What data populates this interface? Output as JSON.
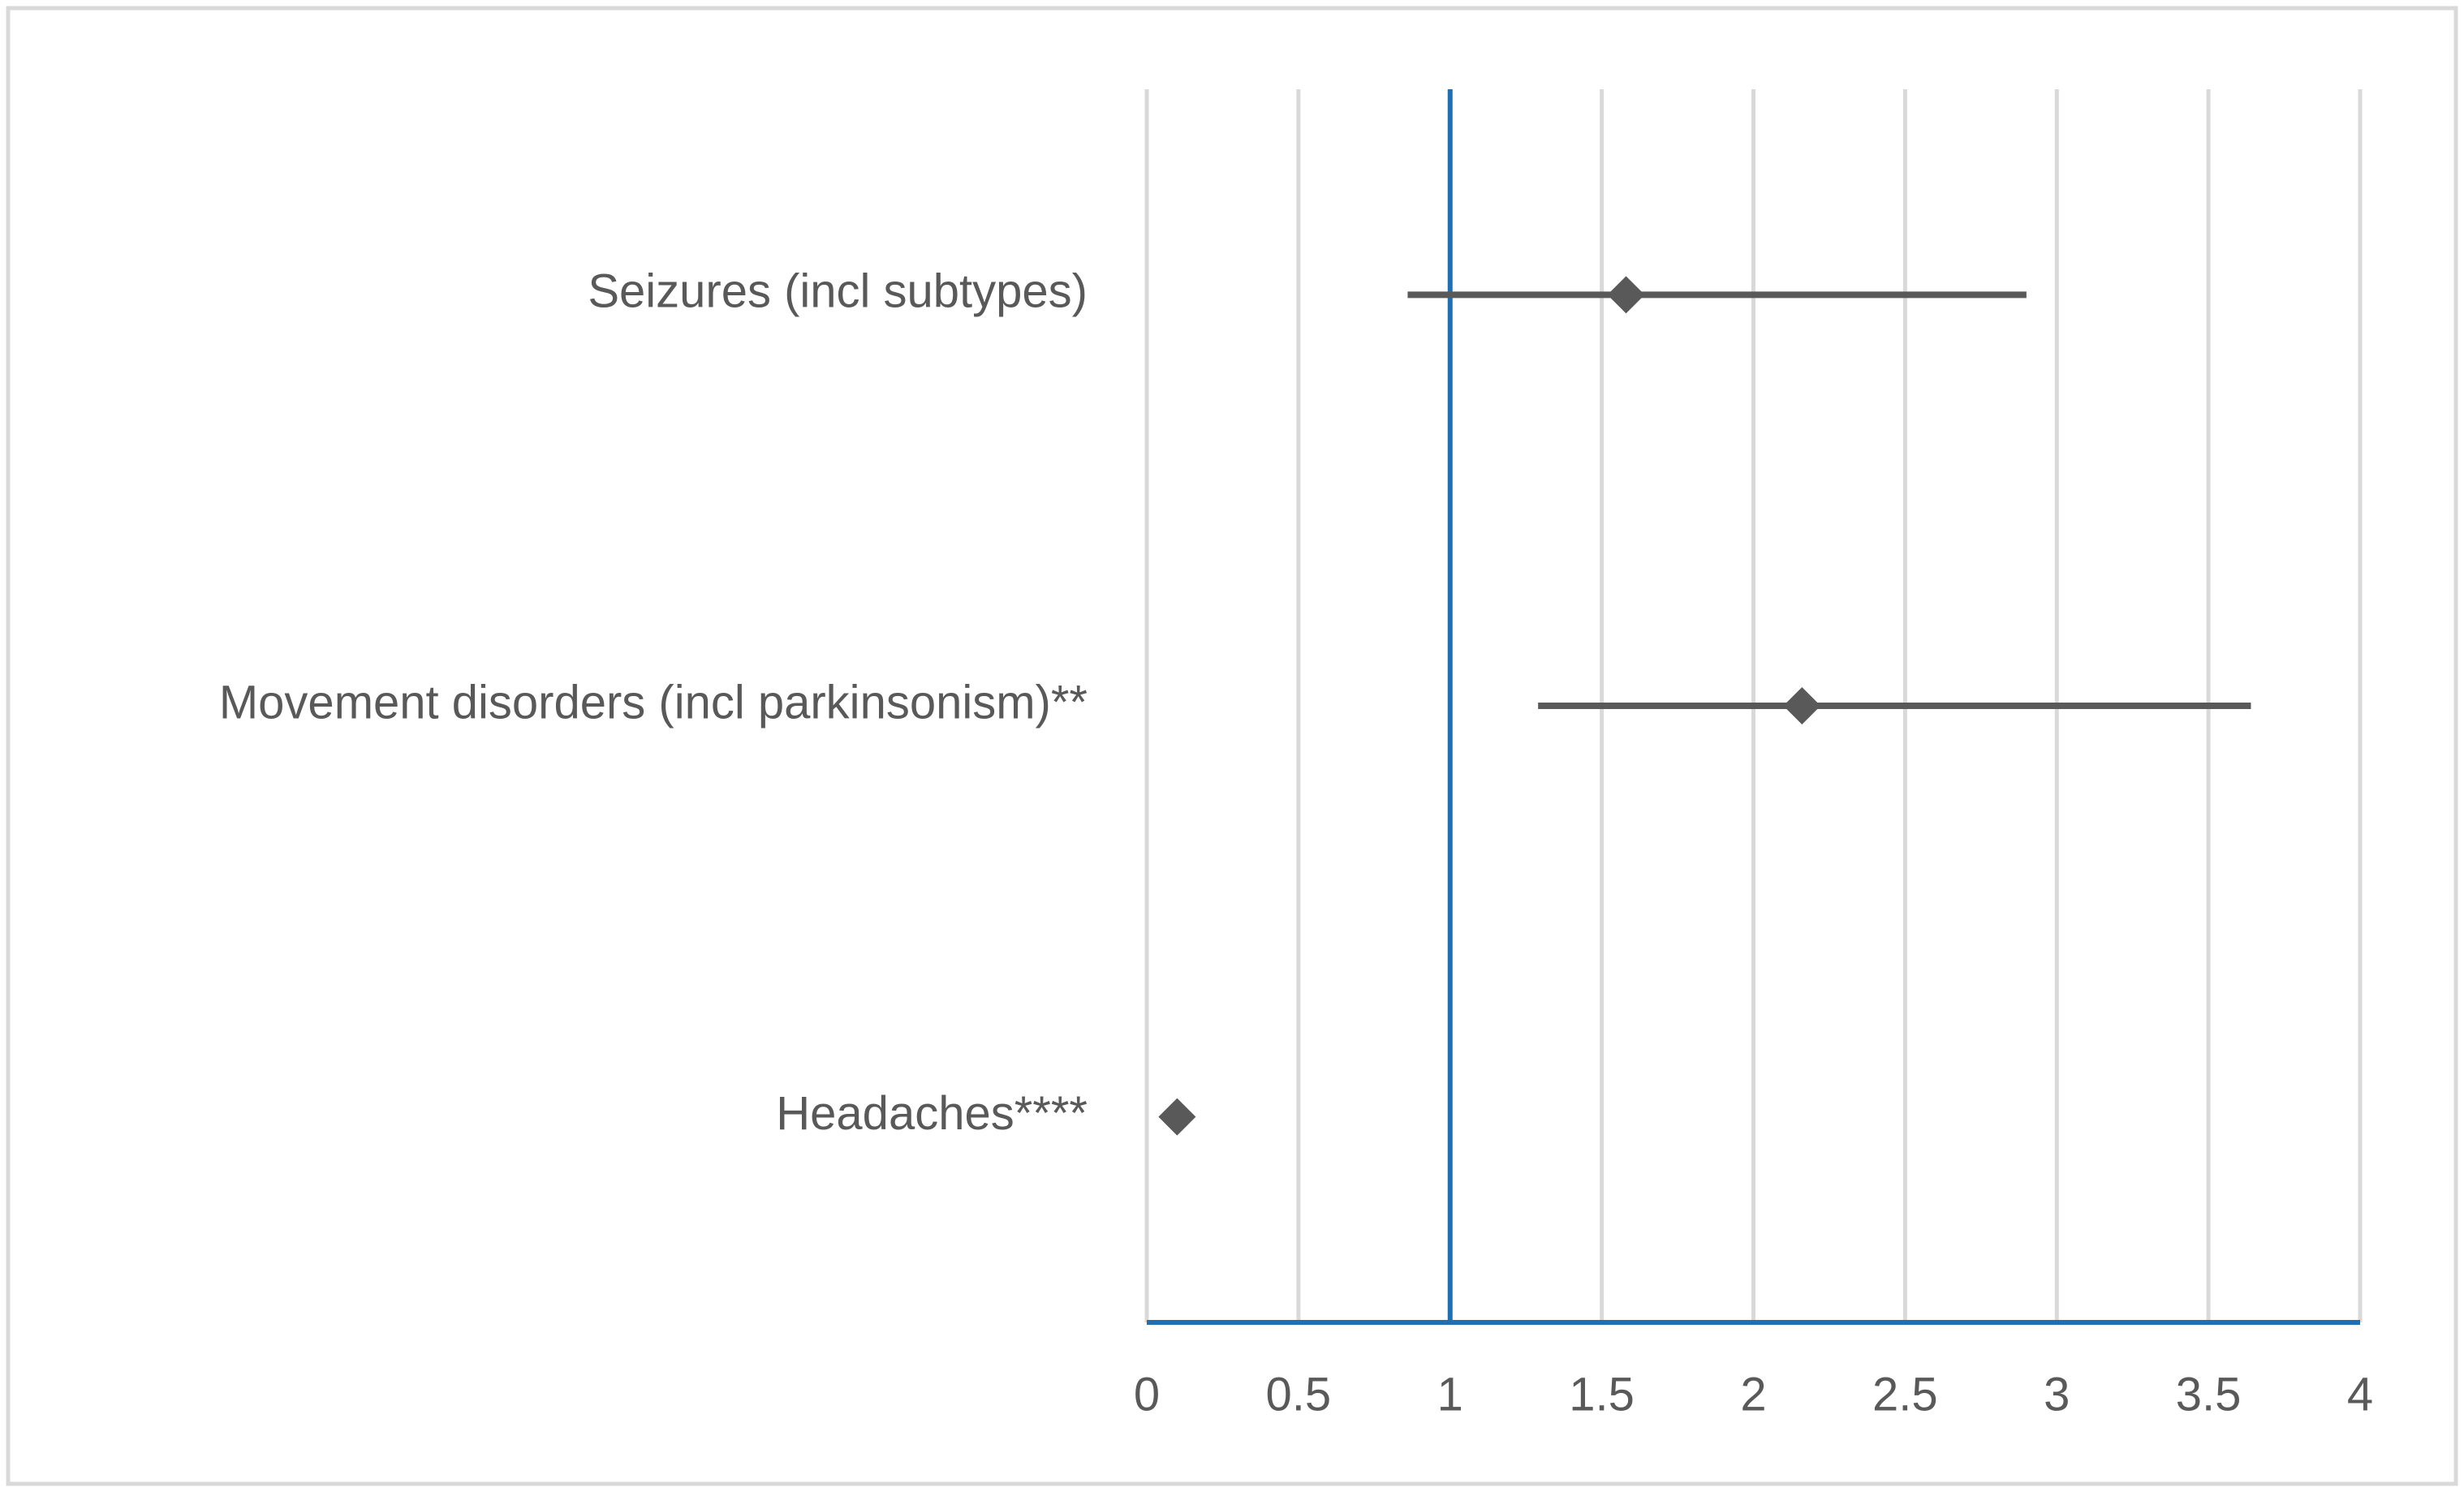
{
  "chart_data": {
    "type": "forest",
    "categories": [
      "Seizures (incl subtypes)",
      "Movement disorders (incl parkinsonism)**",
      "Headaches****"
    ],
    "values": [
      1.58,
      2.16,
      0.1
    ],
    "lower": [
      0.86,
      1.29,
      null
    ],
    "upper": [
      2.9,
      3.64,
      null
    ],
    "color": "#595959",
    "reference_line": 1,
    "reference_color": "#1f6fb5",
    "xlim": [
      0,
      4
    ],
    "xticks": [
      0,
      0.5,
      1,
      1.5,
      2,
      2.5,
      3,
      3.5,
      4
    ],
    "grid": true
  }
}
